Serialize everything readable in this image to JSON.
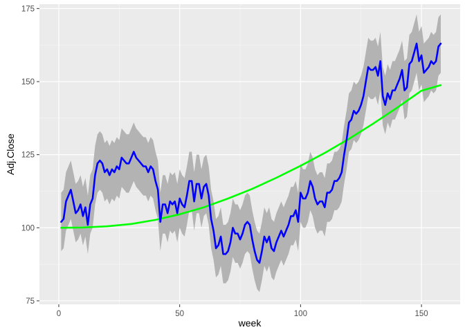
{
  "chart_data": {
    "type": "line",
    "title": "",
    "xlabel": "week",
    "ylabel": "Adj.Close",
    "xlim": [
      -8,
      166
    ],
    "ylim": [
      73.8,
      176.5
    ],
    "x_ticks": [
      0,
      50,
      100,
      150
    ],
    "y_ticks": [
      75,
      100,
      125,
      150,
      175
    ],
    "grid": true,
    "legend": "none",
    "colors": {
      "panel": "#ebebeb",
      "grid_major": "#ffffff",
      "band": "#b3b3b3",
      "price_line": "#0000ff",
      "trend_line": "#00ff00",
      "tick": "#333333"
    },
    "series": [
      {
        "role": "price",
        "x": [
          1,
          2,
          3,
          4,
          5,
          6,
          7,
          8,
          9,
          10,
          11,
          12,
          13,
          14,
          15,
          16,
          17,
          18,
          19,
          20,
          21,
          22,
          23,
          24,
          25,
          26,
          27,
          28,
          29,
          30,
          31,
          32,
          33,
          34,
          35,
          36,
          37,
          38,
          39,
          40,
          41,
          42,
          43,
          44,
          45,
          46,
          47,
          48,
          49,
          50,
          51,
          52,
          53,
          54,
          55,
          56,
          57,
          58,
          59,
          60,
          61,
          62,
          63,
          64,
          65,
          66,
          67,
          68,
          69,
          70,
          71,
          72,
          73,
          74,
          75,
          76,
          77,
          78,
          79,
          80,
          81,
          82,
          83,
          84,
          85,
          86,
          87,
          88,
          89,
          90,
          91,
          92,
          93,
          94,
          95,
          96,
          97,
          98,
          99,
          100,
          101,
          102,
          103,
          104,
          105,
          106,
          107,
          108,
          109,
          110,
          111,
          112,
          113,
          114,
          115,
          116,
          117,
          118,
          119,
          120,
          121,
          122,
          123,
          124,
          125,
          126,
          127,
          128,
          129,
          130,
          131,
          132,
          133,
          134,
          135,
          136,
          137,
          138,
          139,
          140,
          141,
          142,
          143,
          144,
          145,
          146,
          147,
          148,
          149,
          150,
          151,
          152,
          153,
          154,
          155,
          156,
          157,
          158
        ],
        "values": [
          102,
          103,
          109,
          111,
          113,
          109,
          105,
          106,
          108,
          104,
          107,
          101,
          108,
          110,
          118,
          122,
          123,
          122,
          119,
          120,
          118,
          120,
          119,
          121,
          120,
          124,
          123,
          122,
          122,
          124,
          126,
          124,
          123,
          122,
          121,
          121,
          119,
          121,
          120,
          116,
          113,
          102,
          108,
          108,
          105,
          109,
          108,
          109,
          105,
          110,
          108,
          107,
          111,
          116,
          116,
          109,
          115,
          115,
          110,
          114,
          115,
          111,
          103,
          99,
          93,
          94,
          97,
          91,
          91,
          92,
          95,
          100,
          98,
          98,
          96,
          98,
          101,
          102,
          101,
          96,
          92,
          89,
          88,
          92,
          97,
          95,
          97,
          93,
          92,
          95,
          97,
          99,
          97,
          99,
          101,
          104,
          104,
          106,
          102,
          112,
          110,
          110,
          112,
          116,
          114,
          110,
          108,
          109,
          109,
          107,
          112,
          112,
          113,
          116,
          116,
          117,
          119,
          125,
          130,
          136,
          137,
          140,
          139,
          140,
          142,
          145,
          150,
          155,
          154,
          154,
          155,
          152,
          157,
          145,
          142,
          146,
          144,
          147,
          147,
          149,
          151,
          154,
          147,
          148,
          156,
          157,
          160,
          163,
          157,
          159,
          153,
          154,
          155,
          157,
          156,
          157,
          162,
          163
        ]
      },
      {
        "role": "trend",
        "x": [
          1,
          10,
          20,
          30,
          40,
          50,
          60,
          70,
          80,
          90,
          100,
          110,
          120,
          130,
          140,
          150,
          158
        ],
        "values": [
          100,
          100.1,
          100.5,
          101.3,
          102.7,
          104.6,
          107,
          110,
          113.3,
          117.1,
          121.2,
          125.6,
          130.4,
          135.6,
          141.1,
          146.9,
          148.8
        ]
      }
    ],
    "band_halfwidth": 10
  }
}
